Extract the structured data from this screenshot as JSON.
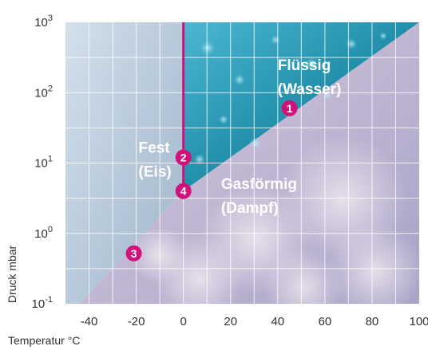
{
  "chart_data": {
    "type": "scatter",
    "title": "",
    "xlabel": "Temperatur °C",
    "ylabel": "Druck mbar",
    "xlim": [
      -50,
      100
    ],
    "ylim_log10": [
      -1,
      3
    ],
    "log_scale_y": true,
    "grid": true,
    "x_ticks": [
      "-40",
      "-20",
      "0",
      "20",
      "40",
      "60",
      "80",
      "100"
    ],
    "x_tick_values": [
      -40,
      -20,
      0,
      20,
      40,
      60,
      80,
      100
    ],
    "y_ticks": [
      {
        "base": "10",
        "exp": "3",
        "value": 1000
      },
      {
        "base": "10",
        "exp": "2",
        "value": 100
      },
      {
        "base": "10",
        "exp": "1",
        "value": 10
      },
      {
        "base": "10",
        "exp": "0",
        "value": 1
      },
      {
        "base": "10",
        "exp": "-1",
        "value": 0.1
      }
    ],
    "regions": [
      {
        "name": "fest",
        "lines": [
          "Fest",
          "(Eis)"
        ],
        "x": -19,
        "y": 14,
        "color": "#b9cadb"
      },
      {
        "name": "fluessig",
        "lines": [
          "Flüssig",
          "(Wasser)"
        ],
        "x": 40,
        "y": 210,
        "color": "#1b7f98"
      },
      {
        "name": "gasfoermig",
        "lines": [
          "Gasförmig",
          "(Dampf)"
        ],
        "x": 16,
        "y": 4.3,
        "color": "#a6a4c4"
      }
    ],
    "points": [
      {
        "label": "1",
        "x": 45,
        "y": 60
      },
      {
        "label": "2",
        "x": 0,
        "y": 12
      },
      {
        "label": "3",
        "x": -21,
        "y": 0.52
      },
      {
        "label": "4",
        "x": 0,
        "y": 4
      }
    ],
    "melting_line": {
      "x": 0,
      "y_from": 4,
      "y_to": 1000
    },
    "sublimation_curve": [
      {
        "x": -50,
        "y": 0.06
      },
      {
        "x": 0,
        "y": 4
      },
      {
        "x": 100,
        "y": 1000
      }
    ],
    "colors": {
      "accent": "#d1127a",
      "grid": "#ffffff",
      "axis_text": "#333333"
    }
  }
}
